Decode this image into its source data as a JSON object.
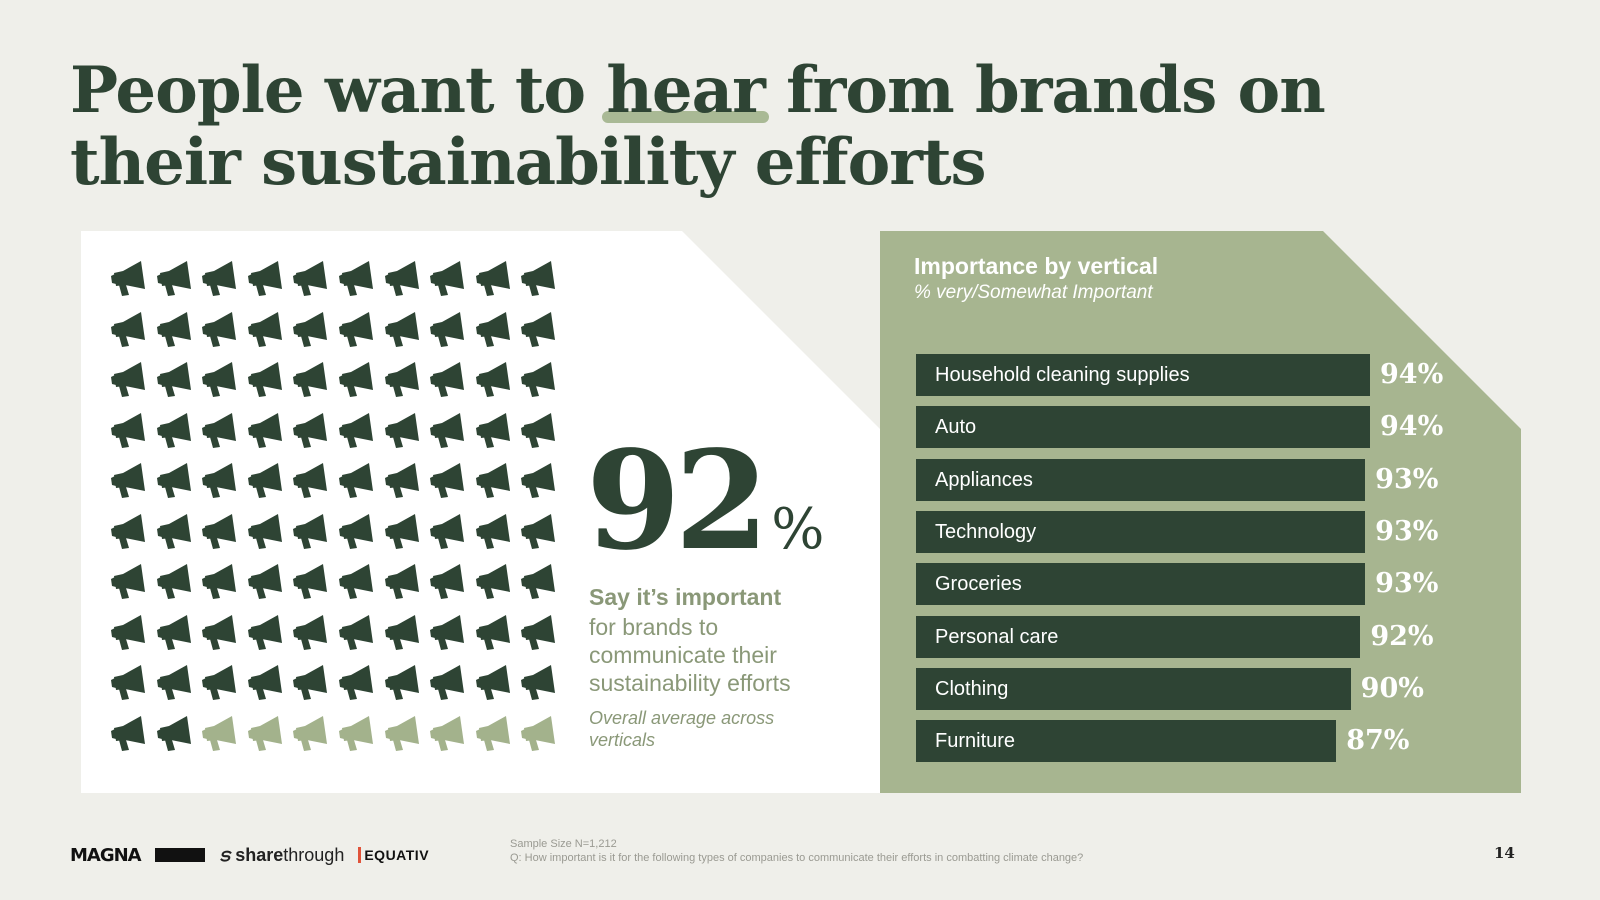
{
  "headline": {
    "before": "People want to ",
    "highlight": "hear",
    "after": " from brands on",
    "line2": "their sustainability efforts"
  },
  "colors": {
    "dark_green": "#2e4434",
    "light_green": "#a3b28c",
    "panel_green": "#a7b590",
    "background": "#efefea"
  },
  "stat": {
    "number": "92",
    "percent_sign": "%",
    "headline": "Say it’s important",
    "body": "for brands to communicate their sustainability efforts",
    "note": "Overall average across verticals",
    "icon": "megaphone-icon",
    "icon_total": 100,
    "icon_filled": 92
  },
  "chart_data": {
    "type": "bar",
    "orientation": "horizontal",
    "title": "Importance by vertical",
    "subtitle": "% very/Somewhat Important",
    "categories": [
      "Household cleaning supplies",
      "Auto",
      "Appliances",
      "Technology",
      "Groceries",
      "Personal care",
      "Clothing",
      "Furniture"
    ],
    "values": [
      94,
      94,
      93,
      93,
      93,
      92,
      90,
      87
    ],
    "value_labels": [
      "94%",
      "94%",
      "93%",
      "93%",
      "93%",
      "92%",
      "90%",
      "87%"
    ]
  },
  "footer": {
    "logos": [
      "MAGNA",
      "sharethrough",
      "EQUATIV"
    ],
    "logo_share_prefix": "share",
    "logo_share_suffix": "through",
    "sample": "Sample Size N=1,212",
    "question": "Q: How important is it for the following types of companies to communicate their efforts in combatting climate change?",
    "page": "14"
  }
}
